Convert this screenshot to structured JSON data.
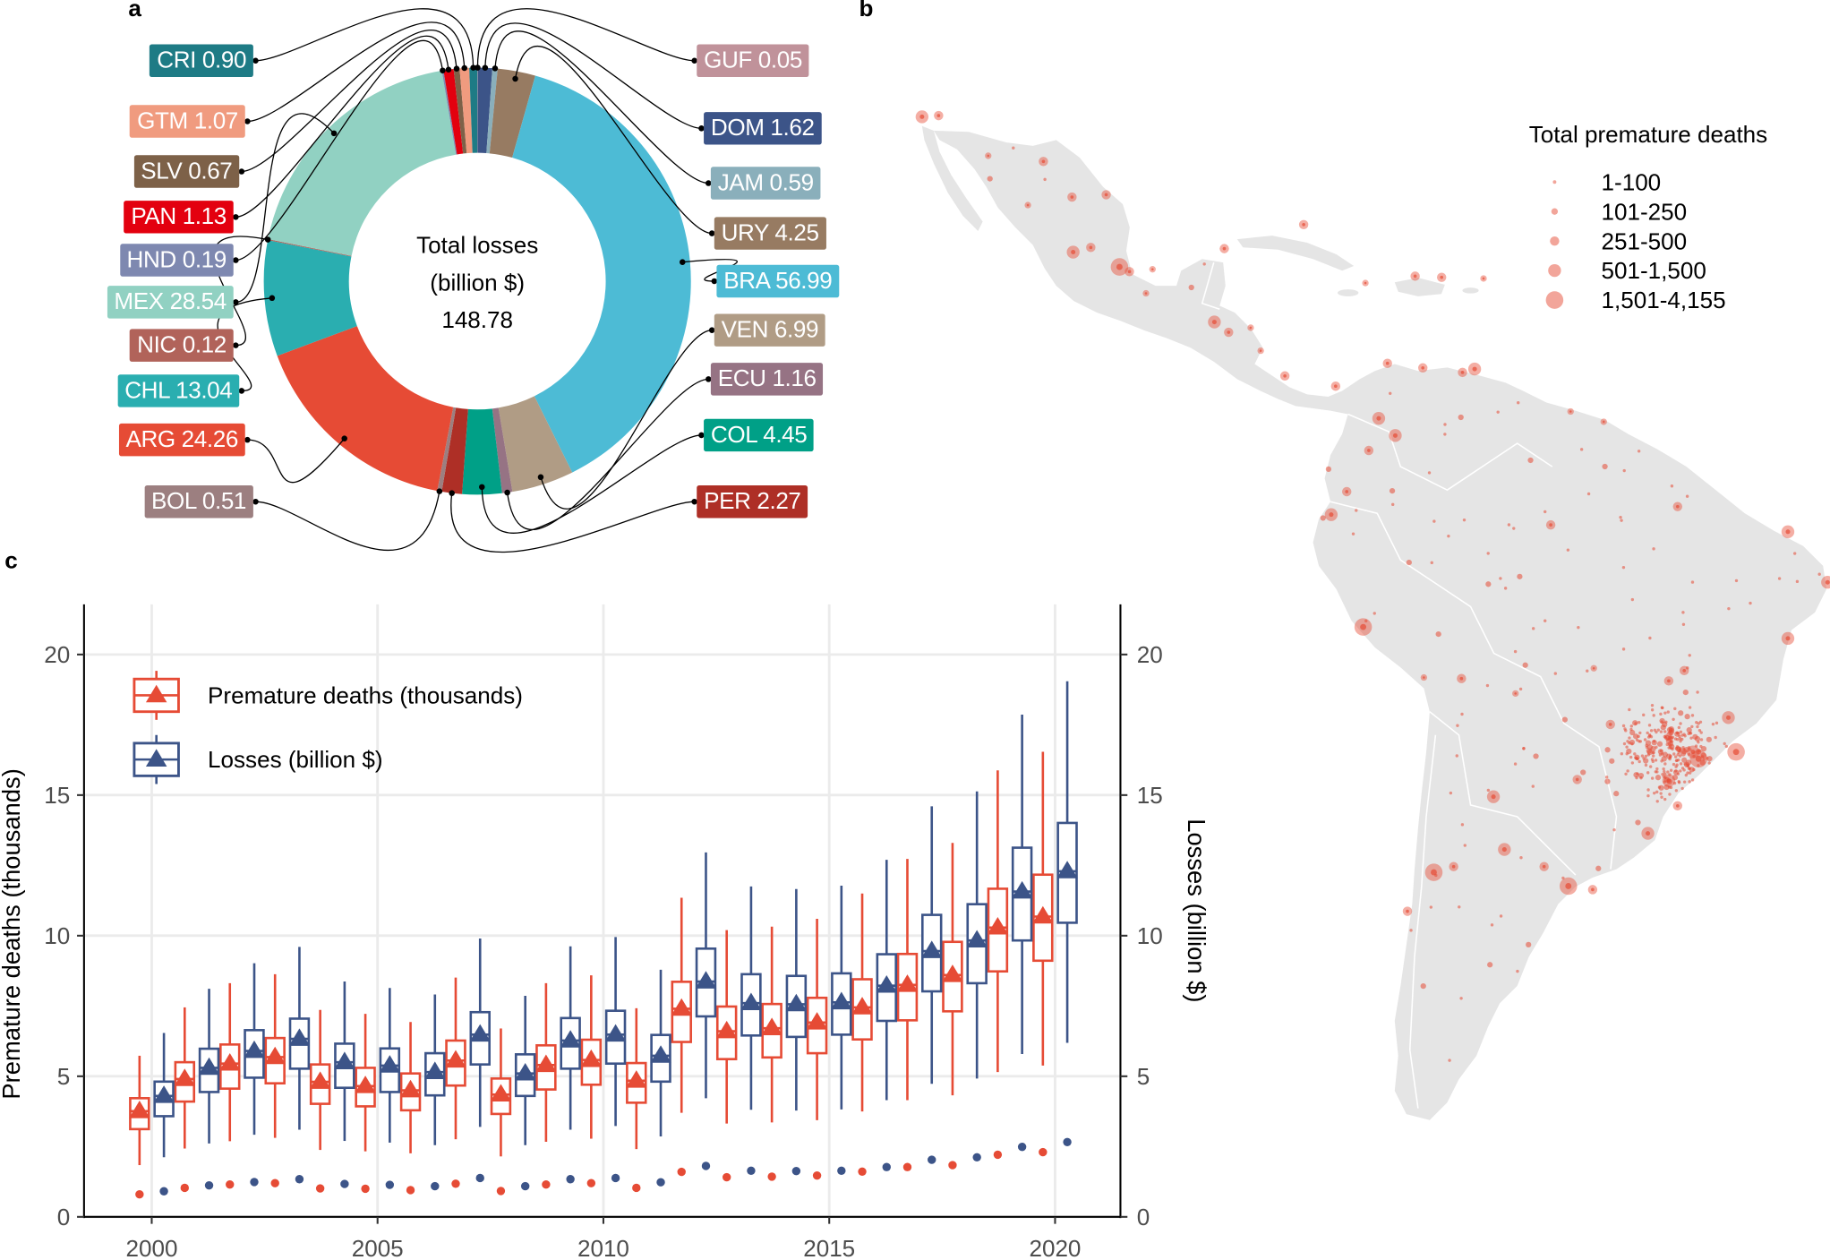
{
  "panels": {
    "a": "a",
    "b": "b",
    "c": "c"
  },
  "donut": {
    "center_title": "Total losses",
    "center_unit": "(billion $)",
    "total": "148.78",
    "slices": [
      {
        "code": "GUF",
        "value": 0.05,
        "label": "GUF 0.05",
        "color": "#c0929a"
      },
      {
        "code": "DOM",
        "value": 1.62,
        "label": "DOM 1.62",
        "color": "#3c5488"
      },
      {
        "code": "JAM",
        "value": 0.59,
        "label": "JAM 0.59",
        "color": "#8aafbb"
      },
      {
        "code": "URY",
        "value": 4.25,
        "label": "URY 4.25",
        "color": "#977b62"
      },
      {
        "code": "BRA",
        "value": 56.99,
        "label": "BRA 56.99",
        "color": "#4dbbd5"
      },
      {
        "code": "VEN",
        "value": 6.99,
        "label": "VEN 6.99",
        "color": "#b09c85"
      },
      {
        "code": "ECU",
        "value": 1.16,
        "label": "ECU 1.16",
        "color": "#967384"
      },
      {
        "code": "COL",
        "value": 4.45,
        "label": "COL 4.45",
        "color": "#00a087"
      },
      {
        "code": "PER",
        "value": 2.27,
        "label": "PER 2.27",
        "color": "#ae2f26"
      },
      {
        "code": "BOL",
        "value": 0.51,
        "label": "BOL 0.51",
        "color": "#9c7f80"
      },
      {
        "code": "ARG",
        "value": 24.26,
        "label": "ARG 24.26",
        "color": "#e64b35"
      },
      {
        "code": "CHL",
        "value": 13.04,
        "label": "CHL 13.04",
        "color": "#2aaeb0"
      },
      {
        "code": "NIC",
        "value": 0.12,
        "label": "NIC 0.12",
        "color": "#b1635a"
      },
      {
        "code": "MEX",
        "value": 28.54,
        "label": "MEX 28.54",
        "color": "#91d1c2"
      },
      {
        "code": "HND",
        "value": 0.19,
        "label": "HND 0.19",
        "color": "#7e88b0"
      },
      {
        "code": "PAN",
        "value": 1.13,
        "label": "PAN 1.13",
        "color": "#e3000f"
      },
      {
        "code": "SLV",
        "value": 0.67,
        "label": "SLV 0.67",
        "color": "#7d6148"
      },
      {
        "code": "GTM",
        "value": 1.07,
        "label": "GTM 1.07",
        "color": "#f09b7f"
      },
      {
        "code": "CRI",
        "value": 0.9,
        "label": "CRI 0.90",
        "color": "#1e7b85"
      }
    ]
  },
  "map": {
    "legend_title": "Total premature deaths",
    "point_color": "#e64b35",
    "land_color": "#e5e5e5",
    "legend_items": [
      {
        "label": "1-100",
        "cls": 1
      },
      {
        "label": "101-250",
        "cls": 2
      },
      {
        "label": "251-500",
        "cls": 3
      },
      {
        "label": "501-1,500",
        "cls": 4
      },
      {
        "label": "1,501-4,155",
        "cls": 5
      }
    ],
    "points": [
      [
        -99.1,
        19.4,
        5
      ],
      [
        -103.3,
        20.7,
        4
      ],
      [
        -100.3,
        25.7,
        3
      ],
      [
        -98.2,
        19.0,
        3
      ],
      [
        -117.0,
        32.5,
        4
      ],
      [
        -115.5,
        32.6,
        3
      ],
      [
        -106.0,
        28.6,
        3
      ],
      [
        -111.0,
        29.1,
        2
      ],
      [
        -107.4,
        24.8,
        2
      ],
      [
        -103.4,
        25.5,
        3
      ],
      [
        -101.7,
        21.1,
        3
      ],
      [
        -96.7,
        17.1,
        2
      ],
      [
        -96.1,
        19.2,
        2
      ],
      [
        -89.6,
        21.0,
        3
      ],
      [
        -90.5,
        14.6,
        4
      ],
      [
        -89.2,
        13.7,
        3
      ],
      [
        -87.2,
        14.1,
        2
      ],
      [
        -86.3,
        12.1,
        2
      ],
      [
        -84.1,
        9.9,
        3
      ],
      [
        -79.5,
        9.0,
        3
      ],
      [
        -82.4,
        23.1,
        3
      ],
      [
        -69.9,
        18.5,
        3
      ],
      [
        -72.3,
        18.6,
        3
      ],
      [
        -76.8,
        18.0,
        2
      ],
      [
        -66.1,
        18.4,
        2
      ],
      [
        -74.1,
        4.7,
        4
      ],
      [
        -75.6,
        6.2,
        4
      ],
      [
        -76.5,
        3.4,
        3
      ],
      [
        -74.8,
        11.0,
        3
      ],
      [
        -66.9,
        10.5,
        4
      ],
      [
        -71.6,
        10.6,
        3
      ],
      [
        -68.0,
        10.2,
        3
      ],
      [
        -78.5,
        -0.2,
        3
      ],
      [
        -79.9,
        -2.2,
        4
      ],
      [
        -77.0,
        -12.0,
        5
      ],
      [
        -71.5,
        -16.4,
        2
      ],
      [
        -68.1,
        -16.5,
        3
      ],
      [
        -63.2,
        -17.8,
        2
      ],
      [
        -70.6,
        -33.4,
        5
      ],
      [
        -73.0,
        -36.8,
        3
      ],
      [
        -58.4,
        -34.6,
        5
      ],
      [
        -64.2,
        -31.4,
        4
      ],
      [
        -60.6,
        -32.9,
        3
      ],
      [
        -68.8,
        -32.9,
        3
      ],
      [
        -65.2,
        -26.8,
        4
      ],
      [
        -56.2,
        -34.9,
        3
      ],
      [
        -57.6,
        -25.3,
        3
      ],
      [
        -46.6,
        -23.5,
        5
      ],
      [
        -43.2,
        -22.9,
        5
      ],
      [
        -43.9,
        -19.9,
        4
      ],
      [
        -49.3,
        -25.4,
        4
      ],
      [
        -51.2,
        -30.0,
        4
      ],
      [
        -47.9,
        -15.8,
        3
      ],
      [
        -38.5,
        -13.0,
        4
      ],
      [
        -34.9,
        -8.1,
        4
      ],
      [
        -38.5,
        -3.7,
        4
      ],
      [
        -60.0,
        -3.1,
        3
      ],
      [
        -48.5,
        -1.5,
        3
      ],
      [
        -49.3,
        -16.7,
        3
      ],
      [
        -47.1,
        -22.9,
        4
      ],
      [
        -48.5,
        -27.6,
        3
      ],
      [
        -56.1,
        -15.6,
        2
      ],
      [
        -54.6,
        -20.5,
        3
      ],
      [
        -58.2,
        6.8,
        2
      ],
      [
        -55.2,
        5.9,
        2
      ]
    ]
  },
  "chart_data": {
    "type": "box",
    "title": "",
    "xlabel": "",
    "ylabel": "Premature deaths (thousands)",
    "ylabel_right": "Losses (billion $)",
    "xlim": [
      1998.5,
      2021.4
    ],
    "ylim": [
      0,
      21.8
    ],
    "xticks": [
      2000,
      2005,
      2010,
      2015,
      2020
    ],
    "yticks": [
      0,
      5,
      10,
      15,
      20
    ],
    "grid": true,
    "legend_position": "top-left",
    "years": [
      2000,
      2001,
      2002,
      2003,
      2004,
      2005,
      2006,
      2007,
      2008,
      2009,
      2010,
      2011,
      2012,
      2013,
      2014,
      2015,
      2016,
      2017,
      2018,
      2019,
      2020
    ],
    "series": [
      {
        "name": "Premature deaths (thousands)",
        "color": "#e64b35",
        "axis": "left",
        "box_fields": [
          "whisker_low",
          "q1",
          "median",
          "q3",
          "whisker_high"
        ],
        "boxes": [
          [
            1.84,
            3.12,
            3.76,
            4.22,
            5.73
          ],
          [
            2.43,
            4.1,
            4.9,
            5.5,
            7.45
          ],
          [
            2.69,
            4.56,
            5.45,
            6.13,
            8.31
          ],
          [
            2.81,
            4.75,
            5.68,
            6.36,
            8.63
          ],
          [
            2.38,
            4.02,
            4.8,
            5.42,
            7.36
          ],
          [
            2.33,
            3.93,
            4.65,
            5.3,
            7.22
          ],
          [
            2.26,
            3.79,
            4.5,
            5.1,
            6.93
          ],
          [
            2.76,
            4.67,
            5.56,
            6.27,
            8.51
          ],
          [
            2.15,
            3.66,
            4.35,
            4.92,
            6.7
          ],
          [
            2.67,
            4.53,
            5.4,
            6.1,
            8.31
          ],
          [
            2.78,
            4.7,
            5.58,
            6.3,
            8.59
          ],
          [
            2.41,
            4.06,
            4.84,
            5.47,
            7.42
          ],
          [
            3.7,
            6.22,
            7.4,
            8.36,
            11.35
          ],
          [
            3.32,
            5.61,
            6.6,
            7.48,
            10.2
          ],
          [
            3.36,
            5.67,
            6.71,
            7.57,
            10.32
          ],
          [
            3.44,
            5.82,
            6.91,
            7.79,
            10.6
          ],
          [
            3.75,
            6.31,
            7.45,
            8.45,
            11.5
          ],
          [
            4.15,
            6.99,
            8.25,
            9.35,
            12.73
          ],
          [
            4.32,
            7.31,
            8.6,
            9.78,
            13.3
          ],
          [
            5.15,
            8.73,
            10.29,
            11.67,
            15.88
          ],
          [
            5.38,
            9.11,
            10.68,
            12.17,
            16.54
          ]
        ],
        "points": [
          0.8,
          1.03,
          1.15,
          1.2,
          1.01,
          1.0,
          0.95,
          1.18,
          0.92,
          1.15,
          1.2,
          1.03,
          1.6,
          1.41,
          1.43,
          1.47,
          1.61,
          1.77,
          1.84,
          2.21,
          2.3
        ]
      },
      {
        "name": "Losses (billion $)",
        "color": "#3c5488",
        "axis": "right",
        "box_fields": [
          "whisker_low",
          "q1",
          "median",
          "q3",
          "whisker_high"
        ],
        "boxes": [
          [
            2.12,
            3.58,
            4.3,
            4.81,
            6.54
          ],
          [
            2.61,
            4.44,
            5.3,
            5.98,
            8.11
          ],
          [
            2.92,
            4.95,
            5.9,
            6.64,
            9.02
          ],
          [
            3.1,
            5.27,
            6.33,
            7.05,
            9.6
          ],
          [
            2.7,
            4.59,
            5.5,
            6.16,
            8.37
          ],
          [
            2.64,
            4.44,
            5.38,
            5.99,
            8.14
          ],
          [
            2.55,
            4.32,
            5.15,
            5.82,
            7.91
          ],
          [
            3.2,
            5.42,
            6.48,
            7.28,
            9.9
          ],
          [
            2.55,
            4.3,
            5.1,
            5.78,
            7.86
          ],
          [
            3.1,
            5.27,
            6.27,
            7.07,
            9.62
          ],
          [
            3.23,
            5.45,
            6.48,
            7.33,
            9.95
          ],
          [
            2.86,
            4.81,
            5.73,
            6.47,
            8.79
          ],
          [
            4.22,
            7.13,
            8.37,
            9.54,
            12.96
          ],
          [
            3.81,
            6.45,
            7.6,
            8.63,
            11.75
          ],
          [
            3.78,
            6.4,
            7.56,
            8.57,
            11.66
          ],
          [
            3.82,
            6.48,
            7.63,
            8.66,
            11.78
          ],
          [
            4.15,
            6.97,
            8.22,
            9.34,
            12.7
          ],
          [
            4.73,
            8.02,
            9.45,
            10.74,
            14.6
          ],
          [
            4.92,
            8.31,
            9.83,
            11.12,
            15.13
          ],
          [
            5.79,
            9.83,
            11.57,
            13.13,
            17.86
          ],
          [
            6.19,
            10.46,
            12.29,
            14.01,
            19.05
          ]
        ],
        "points": [
          0.91,
          1.12,
          1.24,
          1.34,
          1.17,
          1.14,
          1.09,
          1.38,
          1.09,
          1.34,
          1.38,
          1.23,
          1.81,
          1.64,
          1.63,
          1.64,
          1.77,
          2.03,
          2.12,
          2.49,
          2.66
        ]
      }
    ]
  }
}
